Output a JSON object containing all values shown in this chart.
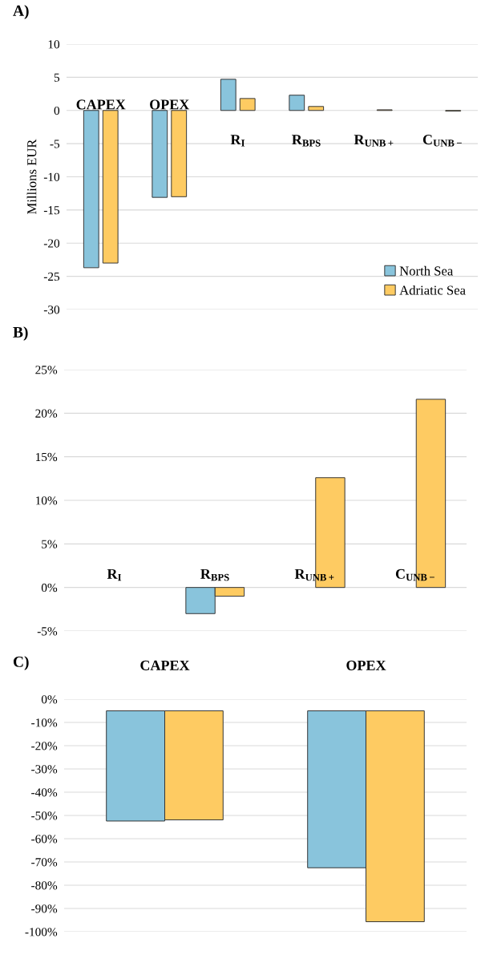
{
  "chart_data": [
    {
      "type": "bar",
      "title": "A)",
      "ylabel": "Millions EUR",
      "categories": [
        "CAPEX",
        "OPEX",
        "R$_{I}$",
        "R$_{BPS}$",
        "R$_{UNB+}$",
        "C$_{UNB−}$"
      ],
      "series": [
        {
          "name": "North Sea",
          "color": "#89c4dc",
          "values": [
            -23.7,
            -13.1,
            4.7,
            2.3,
            null,
            null
          ]
        },
        {
          "name": "Adriatic Sea",
          "color": "#fecb62",
          "values": [
            -23.0,
            -13.0,
            1.8,
            0.6,
            0.1,
            -0.1
          ]
        }
      ],
      "ylim": [
        -30,
        10
      ],
      "yticks": [
        -30,
        -25,
        -20,
        -15,
        -10,
        -5,
        0,
        5,
        10
      ],
      "grid": "y",
      "legend": "bottom right"
    },
    {
      "type": "bar",
      "title": "B)",
      "categories": [
        "R$_{I}$",
        "R$_{BPS}$",
        "R$_{UNB+}$",
        "C$_{UNB−}$"
      ],
      "series": [
        {
          "color": "#89c4dc",
          "values": [
            null,
            -3.0,
            null,
            null
          ]
        },
        {
          "color": "#fecb62",
          "values": [
            null,
            -1.0,
            12.6,
            21.6
          ]
        }
      ],
      "ylim": [
        -5,
        25
      ],
      "yticks": [
        {
          "value": -5,
          "label": "-5%"
        },
        {
          "value": 0,
          "label": "0%"
        },
        {
          "value": 5,
          "label": "5%"
        },
        {
          "value": 10,
          "label": "10%"
        },
        {
          "value": 15,
          "label": "15%"
        },
        {
          "value": 20,
          "label": "20%"
        },
        {
          "value": 25,
          "label": "25%"
        }
      ],
      "grid": "y"
    },
    {
      "type": "bar",
      "title": "C)",
      "categories": [
        "CAPEX",
        "OPEX"
      ],
      "series": [
        {
          "color": "#89c4dc",
          "base": [
            -5,
            -5
          ],
          "values": [
            -47.4,
            -67.5
          ]
        },
        {
          "color": "#fecb62",
          "base": [
            -5,
            -5
          ],
          "values": [
            -46.9,
            -90.7
          ]
        }
      ],
      "ylim": [
        -100,
        0
      ],
      "yticks": [
        {
          "value": -100,
          "label": "-100%"
        },
        {
          "value": -90,
          "label": "-90%"
        },
        {
          "value": -80,
          "label": "-80%"
        },
        {
          "value": -70,
          "label": "-70%"
        },
        {
          "value": -60,
          "label": "-60%"
        },
        {
          "value": -50,
          "label": "-50%"
        },
        {
          "value": -40,
          "label": "-40%"
        },
        {
          "value": -30,
          "label": "-30%"
        },
        {
          "value": -20,
          "label": "-20%"
        },
        {
          "value": -10,
          "label": "-10%"
        },
        {
          "value": 0,
          "label": "0%"
        }
      ],
      "grid": "y"
    }
  ]
}
